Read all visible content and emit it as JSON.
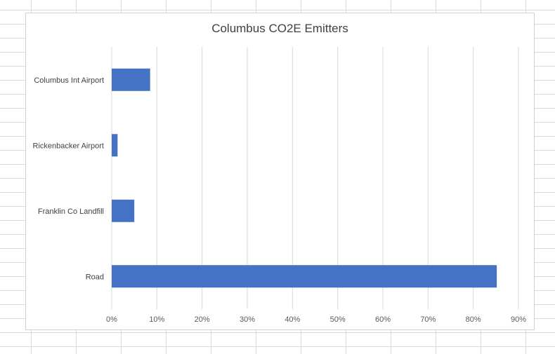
{
  "chart_data": {
    "type": "bar",
    "orientation": "horizontal",
    "title": "Columbus CO2E Emitters",
    "xlabel": "",
    "ylabel": "",
    "categories": [
      "Columbus Int Airport",
      "Rickenbacker Airport",
      "Franklin Co Landfill",
      "Road"
    ],
    "values": [
      8.5,
      1.3,
      5.0,
      85.2
    ],
    "value_format": "percent",
    "xlim": [
      0,
      90
    ],
    "x_ticks": [
      0,
      10,
      20,
      30,
      40,
      50,
      60,
      70,
      80,
      90
    ],
    "x_tick_labels": [
      "0%",
      "10%",
      "20%",
      "30%",
      "40%",
      "50%",
      "60%",
      "70%",
      "80%",
      "90%"
    ],
    "grid": "vertical",
    "legend": "none",
    "bar_color": "#4472c4"
  }
}
